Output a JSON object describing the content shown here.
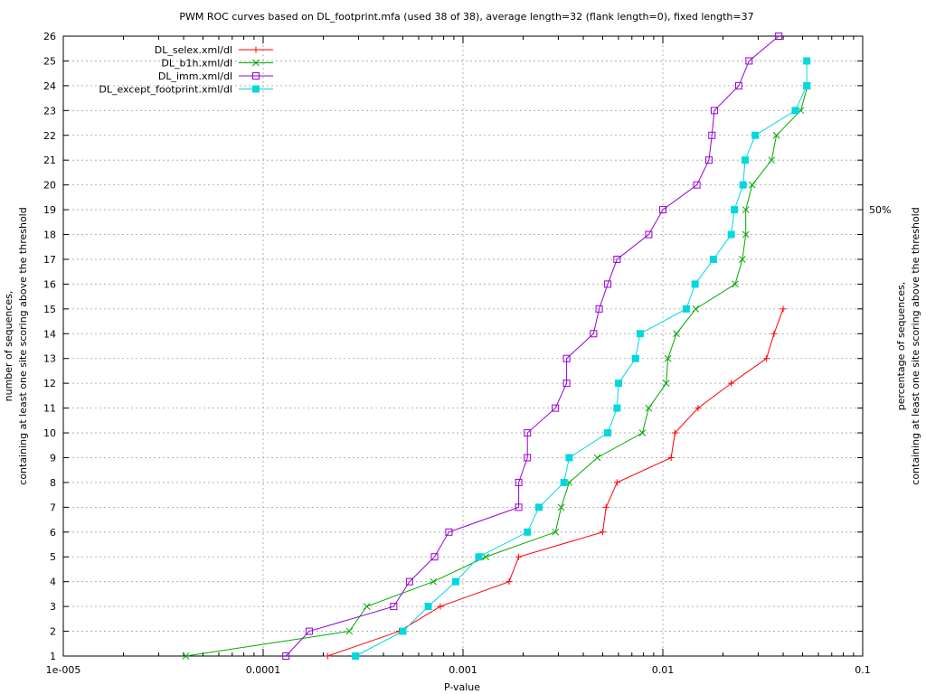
{
  "chart_data": {
    "type": "line",
    "title": "PWM ROC curves based on DL_footprint.mfa (used 38 of 38), average length=32 (flank length=0), fixed length=37",
    "xlabel": "P-value",
    "ylabel_left": [
      "number of sequences,",
      "containing at least one site scoring above the threshold"
    ],
    "ylabel_right": [
      "percentage of sequences,",
      "containing at least one site scoring above the threshold"
    ],
    "x_scale": "log",
    "xlim": [
      1e-05,
      0.1
    ],
    "ylim": [
      1,
      26
    ],
    "x_ticks": [
      {
        "value": 1e-05,
        "label": "1e-005"
      },
      {
        "value": 0.0001,
        "label": "0.0001"
      },
      {
        "value": 0.001,
        "label": "0.001"
      },
      {
        "value": 0.01,
        "label": "0.01"
      },
      {
        "value": 0.1,
        "label": "0.1"
      }
    ],
    "y_ticks": [
      1,
      2,
      3,
      4,
      5,
      6,
      7,
      8,
      9,
      10,
      11,
      12,
      13,
      14,
      15,
      16,
      17,
      18,
      19,
      20,
      21,
      22,
      23,
      24,
      25,
      26
    ],
    "y2_ticks": [
      {
        "value": 19,
        "label": "50%"
      }
    ],
    "grid": true,
    "legend_position": "top-left",
    "series": [
      {
        "name": "DL_selex.xml/dl",
        "color": "#ff0000",
        "marker": "plus",
        "points": [
          [
            0.00021,
            1
          ],
          [
            0.00048,
            2
          ],
          [
            0.00077,
            3
          ],
          [
            0.0017,
            4
          ],
          [
            0.0019,
            5
          ],
          [
            0.005,
            6
          ],
          [
            0.0052,
            7
          ],
          [
            0.0059,
            8
          ],
          [
            0.011,
            9
          ],
          [
            0.0115,
            10
          ],
          [
            0.015,
            11
          ],
          [
            0.022,
            12
          ],
          [
            0.033,
            13
          ],
          [
            0.036,
            14
          ],
          [
            0.04,
            15
          ]
        ]
      },
      {
        "name": "DL_b1h.xml/dl",
        "color": "#00aa00",
        "marker": "cross",
        "points": [
          [
            4.1e-05,
            1
          ],
          [
            0.00027,
            2
          ],
          [
            0.00033,
            3
          ],
          [
            0.00071,
            4
          ],
          [
            0.0013,
            5
          ],
          [
            0.0029,
            6
          ],
          [
            0.0031,
            7
          ],
          [
            0.0034,
            8
          ],
          [
            0.0047,
            9
          ],
          [
            0.0079,
            10
          ],
          [
            0.0085,
            11
          ],
          [
            0.0104,
            12
          ],
          [
            0.0106,
            13
          ],
          [
            0.0117,
            14
          ],
          [
            0.0146,
            15
          ],
          [
            0.023,
            16
          ],
          [
            0.025,
            17
          ],
          [
            0.026,
            18
          ],
          [
            0.026,
            19
          ],
          [
            0.028,
            20
          ],
          [
            0.035,
            21
          ],
          [
            0.037,
            22
          ],
          [
            0.049,
            23
          ],
          [
            0.053,
            24
          ]
        ]
      },
      {
        "name": "DL_imm.xml/dl",
        "color": "#9500d3",
        "marker": "square",
        "points": [
          [
            0.00013,
            1
          ],
          [
            0.00017,
            2
          ],
          [
            0.00045,
            3
          ],
          [
            0.00054,
            4
          ],
          [
            0.00072,
            5
          ],
          [
            0.00085,
            6
          ],
          [
            0.0019,
            7
          ],
          [
            0.0019,
            8
          ],
          [
            0.0021,
            9
          ],
          [
            0.0021,
            10
          ],
          [
            0.0029,
            11
          ],
          [
            0.0033,
            12
          ],
          [
            0.0033,
            13
          ],
          [
            0.0045,
            14
          ],
          [
            0.0048,
            15
          ],
          [
            0.0053,
            16
          ],
          [
            0.0059,
            17
          ],
          [
            0.0085,
            18
          ],
          [
            0.01,
            19
          ],
          [
            0.0148,
            20
          ],
          [
            0.017,
            21
          ],
          [
            0.0176,
            22
          ],
          [
            0.0181,
            23
          ],
          [
            0.024,
            24
          ],
          [
            0.027,
            25
          ],
          [
            0.038,
            26
          ]
        ]
      },
      {
        "name": "DL_except_footprint.xml/dl",
        "color": "#00d8e0",
        "marker": "filled-square",
        "points": [
          [
            0.00029,
            1
          ],
          [
            0.0005,
            2
          ],
          [
            0.00067,
            3
          ],
          [
            0.00092,
            4
          ],
          [
            0.0012,
            5
          ],
          [
            0.0021,
            6
          ],
          [
            0.0024,
            7
          ],
          [
            0.0032,
            8
          ],
          [
            0.0034,
            9
          ],
          [
            0.0053,
            10
          ],
          [
            0.0059,
            11
          ],
          [
            0.006,
            12
          ],
          [
            0.0073,
            13
          ],
          [
            0.0077,
            14
          ],
          [
            0.0131,
            15
          ],
          [
            0.0145,
            16
          ],
          [
            0.0179,
            17
          ],
          [
            0.022,
            18
          ],
          [
            0.0228,
            19
          ],
          [
            0.0252,
            20
          ],
          [
            0.0258,
            21
          ],
          [
            0.029,
            22
          ],
          [
            0.046,
            23
          ],
          [
            0.0525,
            24
          ],
          [
            0.0525,
            25
          ]
        ]
      }
    ]
  }
}
